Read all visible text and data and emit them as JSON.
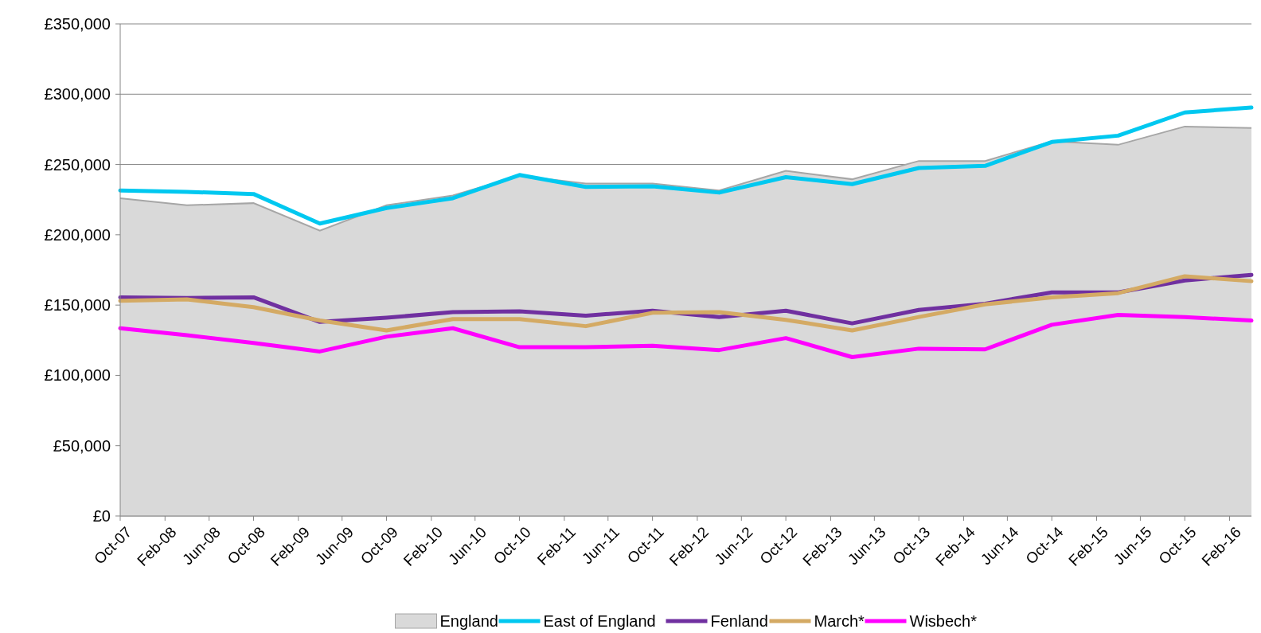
{
  "chart_data": {
    "type": "line",
    "x": [
      "2007-10",
      "2008-04",
      "2008-10",
      "2009-04",
      "2009-10",
      "2010-04",
      "2010-10",
      "2011-04",
      "2011-10",
      "2012-04",
      "2012-10",
      "2013-04",
      "2013-10",
      "2014-04",
      "2014-10",
      "2015-04",
      "2015-10",
      "2016-04"
    ],
    "xlim": [
      "2007-10",
      "2016-04"
    ],
    "xticks": [
      {
        "value": "2007-10",
        "label": "Oct-07"
      },
      {
        "value": "2008-02",
        "label": "Feb-08"
      },
      {
        "value": "2008-06",
        "label": "Jun-08"
      },
      {
        "value": "2008-10",
        "label": "Oct-08"
      },
      {
        "value": "2009-02",
        "label": "Feb-09"
      },
      {
        "value": "2009-06",
        "label": "Jun-09"
      },
      {
        "value": "2009-10",
        "label": "Oct-09"
      },
      {
        "value": "2010-02",
        "label": "Feb-10"
      },
      {
        "value": "2010-06",
        "label": "Jun-10"
      },
      {
        "value": "2010-10",
        "label": "Oct-10"
      },
      {
        "value": "2011-02",
        "label": "Feb-11"
      },
      {
        "value": "2011-06",
        "label": "Jun-11"
      },
      {
        "value": "2011-10",
        "label": "Oct-11"
      },
      {
        "value": "2012-02",
        "label": "Feb-12"
      },
      {
        "value": "2012-06",
        "label": "Jun-12"
      },
      {
        "value": "2012-10",
        "label": "Oct-12"
      },
      {
        "value": "2013-02",
        "label": "Feb-13"
      },
      {
        "value": "2013-06",
        "label": "Jun-13"
      },
      {
        "value": "2013-10",
        "label": "Oct-13"
      },
      {
        "value": "2014-02",
        "label": "Feb-14"
      },
      {
        "value": "2014-06",
        "label": "Jun-14"
      },
      {
        "value": "2014-10",
        "label": "Oct-14"
      },
      {
        "value": "2015-02",
        "label": "Feb-15"
      },
      {
        "value": "2015-06",
        "label": "Jun-15"
      },
      {
        "value": "2015-10",
        "label": "Oct-15"
      },
      {
        "value": "2016-02",
        "label": "Feb-16"
      }
    ],
    "ylim": [
      0,
      350000
    ],
    "yticks": [
      {
        "value": 0,
        "label": "£0"
      },
      {
        "value": 50000,
        "label": "£50,000"
      },
      {
        "value": 100000,
        "label": "£100,000"
      },
      {
        "value": 150000,
        "label": "£150,000"
      },
      {
        "value": 200000,
        "label": "£200,000"
      },
      {
        "value": 250000,
        "label": "£250,000"
      },
      {
        "value": 300000,
        "label": "£300,000"
      },
      {
        "value": 350000,
        "label": "£350,000"
      }
    ],
    "grid": "y",
    "legend": "bottom",
    "line_style": "solid",
    "marker": "none",
    "series": [
      {
        "name": "England",
        "type": "area",
        "color": "#d9d9d9",
        "values": [
          226000,
          221000,
          222500,
          203000,
          221000,
          228000,
          242000,
          236500,
          236500,
          231500,
          245500,
          239500,
          252500,
          252500,
          266500,
          264000,
          277000,
          276000
        ]
      },
      {
        "name": "East of England",
        "color": "#00c8f0",
        "values": [
          231500,
          230500,
          229000,
          208000,
          219000,
          226000,
          242500,
          234000,
          234500,
          230000,
          241000,
          236000,
          247500,
          249000,
          266000,
          270500,
          287000,
          290500
        ]
      },
      {
        "name": "Fenland",
        "color": "#7030a0",
        "values": [
          155500,
          155000,
          155500,
          138000,
          141000,
          145000,
          145500,
          142500,
          146000,
          141500,
          146000,
          137000,
          146500,
          151000,
          159000,
          159000,
          167500,
          171500
        ]
      },
      {
        "name": "March*",
        "color": "#d4aa64",
        "values": [
          153000,
          154000,
          148500,
          139000,
          132000,
          140000,
          140000,
          135000,
          144500,
          145000,
          139500,
          132000,
          141500,
          150500,
          155500,
          158500,
          170500,
          167000
        ]
      },
      {
        "name": "Wisbech*",
        "color": "#ff00ff",
        "values": [
          133500,
          128500,
          123000,
          117000,
          127500,
          133500,
          120000,
          120000,
          121000,
          118000,
          126500,
          113000,
          119000,
          118500,
          136000,
          143000,
          141500,
          139000
        ]
      }
    ]
  }
}
